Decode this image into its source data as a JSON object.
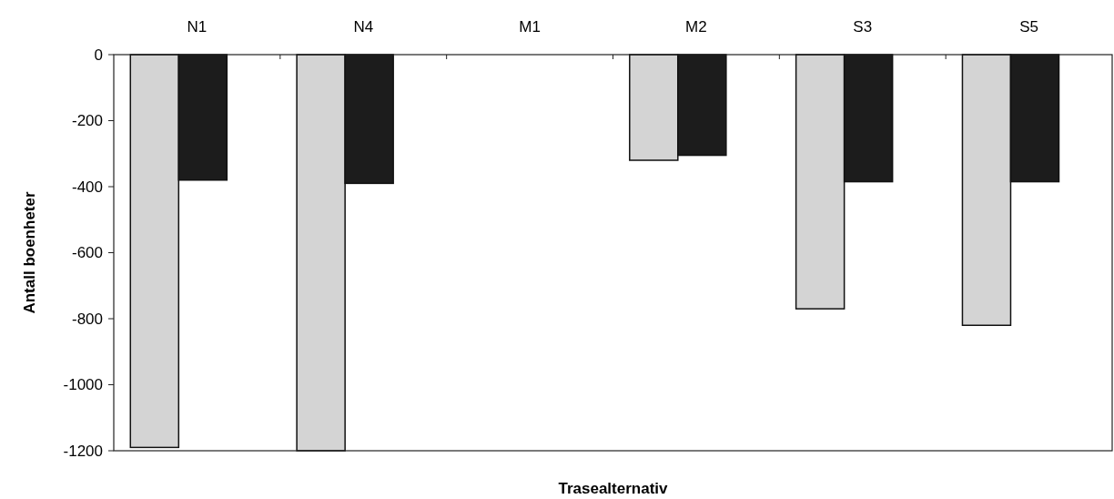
{
  "chart_data": {
    "type": "bar",
    "xlabel": "Trasealternativ",
    "ylabel": "Antall boenheter",
    "categories": [
      "N1",
      "N4",
      "M1",
      "M2",
      "S3",
      "S5"
    ],
    "series": [
      {
        "color": "#d4d4d4",
        "values": [
          -1190,
          -1200,
          0,
          -320,
          -770,
          -820
        ]
      },
      {
        "color": "#1c1c1c",
        "values": [
          -380,
          -390,
          0,
          -305,
          -385,
          -385
        ]
      }
    ],
    "ylim": [
      -1200,
      0
    ],
    "yticks": [
      -1200,
      -1000,
      -800,
      -600,
      -400,
      -200,
      0
    ],
    "grid": false
  }
}
